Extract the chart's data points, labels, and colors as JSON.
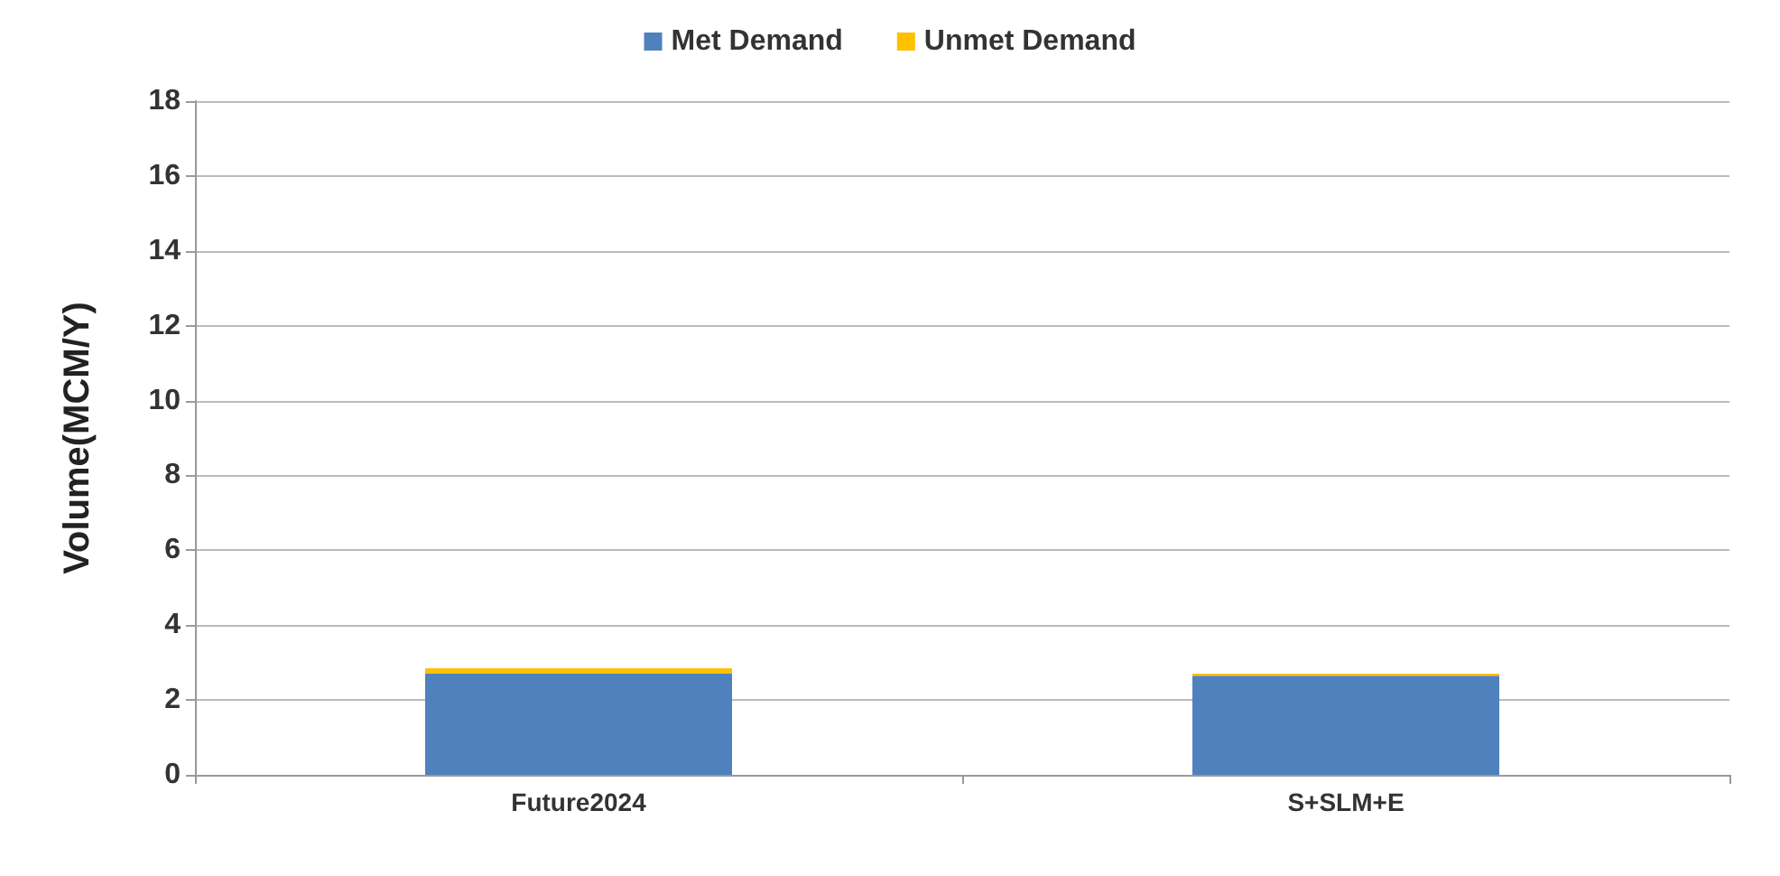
{
  "chart_data": {
    "type": "bar",
    "stacked": true,
    "ylabel": "Volume(MCM/Y)",
    "categories": [
      "Future2024",
      "S+SLM+E"
    ],
    "series": [
      {
        "name": "Met Demand",
        "color": "#4f81bd",
        "values": [
          2.7,
          2.65
        ]
      },
      {
        "name": "Unmet Demand",
        "color": "#ffc000",
        "values": [
          0.15,
          0.05
        ]
      }
    ],
    "ylim": [
      0,
      18
    ],
    "yticks": [
      0,
      2,
      4,
      6,
      8,
      10,
      12,
      14,
      16,
      18
    ],
    "grid": "y",
    "legend": "top"
  }
}
